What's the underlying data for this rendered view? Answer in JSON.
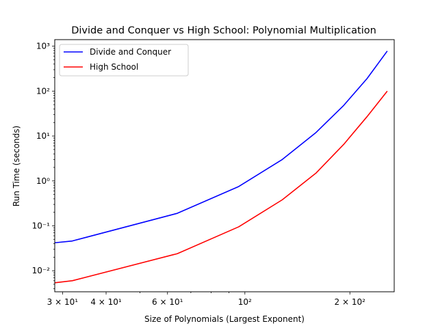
{
  "chart_data": {
    "type": "line",
    "title": "Divide and Conquer vs High School: Polynomial Multiplication",
    "xlabel": "Size of Polynomials (Largest Exponent)",
    "ylabel": "Run Time (seconds)",
    "xscale": "log",
    "yscale": "log",
    "xlim": [
      28.5,
      268
    ],
    "ylim": [
      0.0034,
      1400
    ],
    "grid": false,
    "legend_position": "top-left",
    "x_ticks": [
      {
        "value": 30,
        "label": "3 × 10¹"
      },
      {
        "value": 40,
        "label": "4 × 10¹"
      },
      {
        "value": 60,
        "label": "6 × 10¹"
      },
      {
        "value": 100,
        "label": "10²"
      },
      {
        "value": 200,
        "label": "2 × 10²"
      }
    ],
    "y_ticks": [
      {
        "value": 0.01,
        "label": "10⁻²"
      },
      {
        "value": 0.1,
        "label": "10⁻¹"
      },
      {
        "value": 1,
        "label": "10⁰"
      },
      {
        "value": 10,
        "label": "10¹"
      },
      {
        "value": 100,
        "label": "10²"
      },
      {
        "value": 1000,
        "label": "10³"
      }
    ],
    "series": [
      {
        "name": "Divide and Conquer",
        "color": "#0000ff",
        "x": [
          28.5,
          32,
          64,
          96,
          128,
          160,
          192,
          224,
          256
        ],
        "y": [
          0.042,
          0.046,
          0.19,
          0.75,
          3.0,
          12,
          48,
          190,
          780
        ]
      },
      {
        "name": "High School",
        "color": "#ff0000",
        "x": [
          28.5,
          32,
          64,
          96,
          128,
          160,
          192,
          224,
          256
        ],
        "y": [
          0.0054,
          0.006,
          0.024,
          0.095,
          0.38,
          1.5,
          6.5,
          27,
          100
        ]
      }
    ]
  }
}
